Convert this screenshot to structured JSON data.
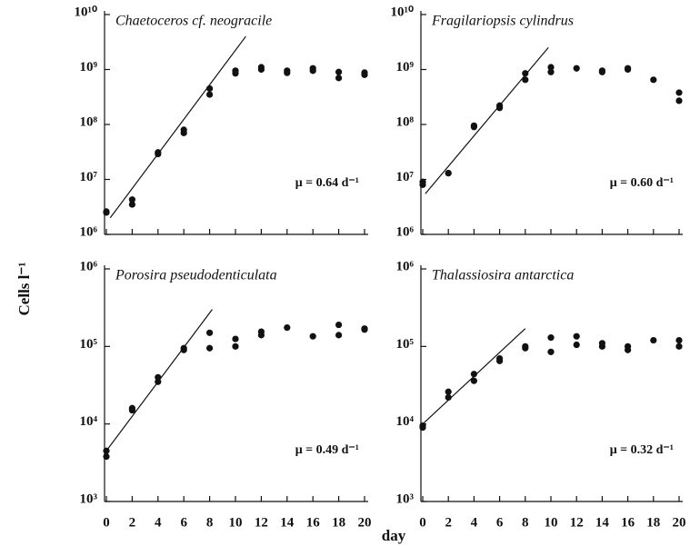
{
  "ylabel": "Cells l⁻¹",
  "xlabel": "day",
  "chart_data": [
    {
      "type": "scatter",
      "title": "Chaetoceros cf. neogracile",
      "annotation": "μ = 0.64 d⁻¹",
      "log_y": true,
      "color": "#111111",
      "xticklabels": false,
      "x": [
        0,
        0,
        2,
        2,
        4,
        4,
        6,
        6,
        8,
        8,
        10,
        10,
        12,
        12,
        14,
        14,
        16,
        16,
        18,
        18,
        20,
        20
      ],
      "y": [
        2500000,
        2600000,
        4300000,
        3500000,
        31000000,
        29000000,
        80000000,
        70000000,
        450000000,
        350000000,
        950000000,
        850000000,
        1100000000,
        1000000000,
        950000000,
        870000000,
        1050000000,
        950000000,
        900000000,
        700000000,
        880000000,
        800000000
      ],
      "fit_x": [
        0.3,
        10.8
      ],
      "fit_y": [
        2000000,
        4000000000
      ],
      "xlim": [
        0,
        20
      ],
      "ylim": [
        1000000,
        10000000000
      ],
      "xticks": [
        0,
        2,
        4,
        6,
        8,
        10,
        12,
        14,
        16,
        18,
        20
      ],
      "yticks": [
        {
          "value": 1000000,
          "label": "10⁶"
        },
        {
          "value": 10000000,
          "label": "10⁷"
        },
        {
          "value": 100000000,
          "label": "10⁸"
        },
        {
          "value": 1000000000,
          "label": "10⁹"
        },
        {
          "value": 10000000000,
          "label": "10¹⁰"
        }
      ]
    },
    {
      "type": "scatter",
      "title": "Fragilariopsis cylindrus",
      "annotation": "μ = 0.60 d⁻¹",
      "log_y": true,
      "color": "#111111",
      "xticklabels": false,
      "x": [
        0,
        0,
        2,
        2,
        4,
        4,
        6,
        6,
        8,
        8,
        10,
        10,
        12,
        14,
        14,
        16,
        16,
        18,
        20,
        20
      ],
      "y": [
        9000000,
        8000000,
        13000000,
        13000000,
        95000000,
        90000000,
        220000000,
        200000000,
        850000000,
        650000000,
        1100000000,
        900000000,
        1050000000,
        950000000,
        900000000,
        1050000000,
        1000000000,
        650000000,
        380000000,
        270000000
      ],
      "fit_x": [
        0.2,
        9.8
      ],
      "fit_y": [
        5500000,
        2500000000
      ],
      "xlim": [
        0,
        20
      ],
      "ylim": [
        1000000,
        10000000000
      ],
      "xticks": [
        0,
        2,
        4,
        6,
        8,
        10,
        12,
        14,
        16,
        18,
        20
      ],
      "yticks": [
        {
          "value": 1000000,
          "label": "10⁶"
        },
        {
          "value": 10000000,
          "label": "10⁷"
        },
        {
          "value": 100000000,
          "label": "10⁸"
        },
        {
          "value": 1000000000,
          "label": "10⁹"
        },
        {
          "value": 10000000000,
          "label": "10¹⁰"
        }
      ]
    },
    {
      "type": "scatter",
      "title": "Porosira pseudodenticulata",
      "annotation": "μ = 0.49 d⁻¹",
      "log_y": true,
      "color": "#111111",
      "xticklabels": true,
      "x": [
        0,
        0,
        2,
        2,
        4,
        4,
        6,
        6,
        8,
        8,
        10,
        10,
        12,
        12,
        14,
        16,
        18,
        18,
        20,
        20
      ],
      "y": [
        4500,
        3800,
        16000,
        15000,
        40000,
        35000,
        90000,
        95000,
        150000,
        95000,
        125000,
        100000,
        155000,
        140000,
        175000,
        135000,
        190000,
        140000,
        170000,
        165000
      ],
      "fit_x": [
        0,
        8.2
      ],
      "fit_y": [
        4500,
        300000
      ],
      "xlim": [
        0,
        20
      ],
      "ylim": [
        1000,
        1000000
      ],
      "xticks": [
        0,
        2,
        4,
        6,
        8,
        10,
        12,
        14,
        16,
        18,
        20
      ],
      "yticks": [
        {
          "value": 1000,
          "label": "10³"
        },
        {
          "value": 10000,
          "label": "10⁴"
        },
        {
          "value": 100000,
          "label": "10⁵"
        },
        {
          "value": 1000000,
          "label": "10⁶"
        }
      ]
    },
    {
      "type": "scatter",
      "title": "Thalassiosira antarctica",
      "annotation": "μ = 0.32 d⁻¹",
      "log_y": true,
      "color": "#111111",
      "xticklabels": true,
      "x": [
        0,
        0,
        2,
        2,
        4,
        4,
        6,
        6,
        8,
        8,
        10,
        10,
        12,
        12,
        14,
        14,
        16,
        16,
        18,
        20,
        20
      ],
      "y": [
        9000,
        9500,
        26000,
        22000,
        44000,
        36000,
        70000,
        65000,
        100000,
        95000,
        130000,
        85000,
        135000,
        105000,
        110000,
        100000,
        100000,
        90000,
        120000,
        120000,
        100000
      ],
      "fit_x": [
        0,
        8
      ],
      "fit_y": [
        10000,
        170000
      ],
      "xlim": [
        0,
        20
      ],
      "ylim": [
        1000,
        1000000
      ],
      "xticks": [
        0,
        2,
        4,
        6,
        8,
        10,
        12,
        14,
        16,
        18,
        20
      ],
      "yticks": [
        {
          "value": 1000,
          "label": "10³"
        },
        {
          "value": 10000,
          "label": "10⁴"
        },
        {
          "value": 100000,
          "label": "10⁵"
        },
        {
          "value": 1000000,
          "label": "10⁶"
        }
      ]
    }
  ]
}
